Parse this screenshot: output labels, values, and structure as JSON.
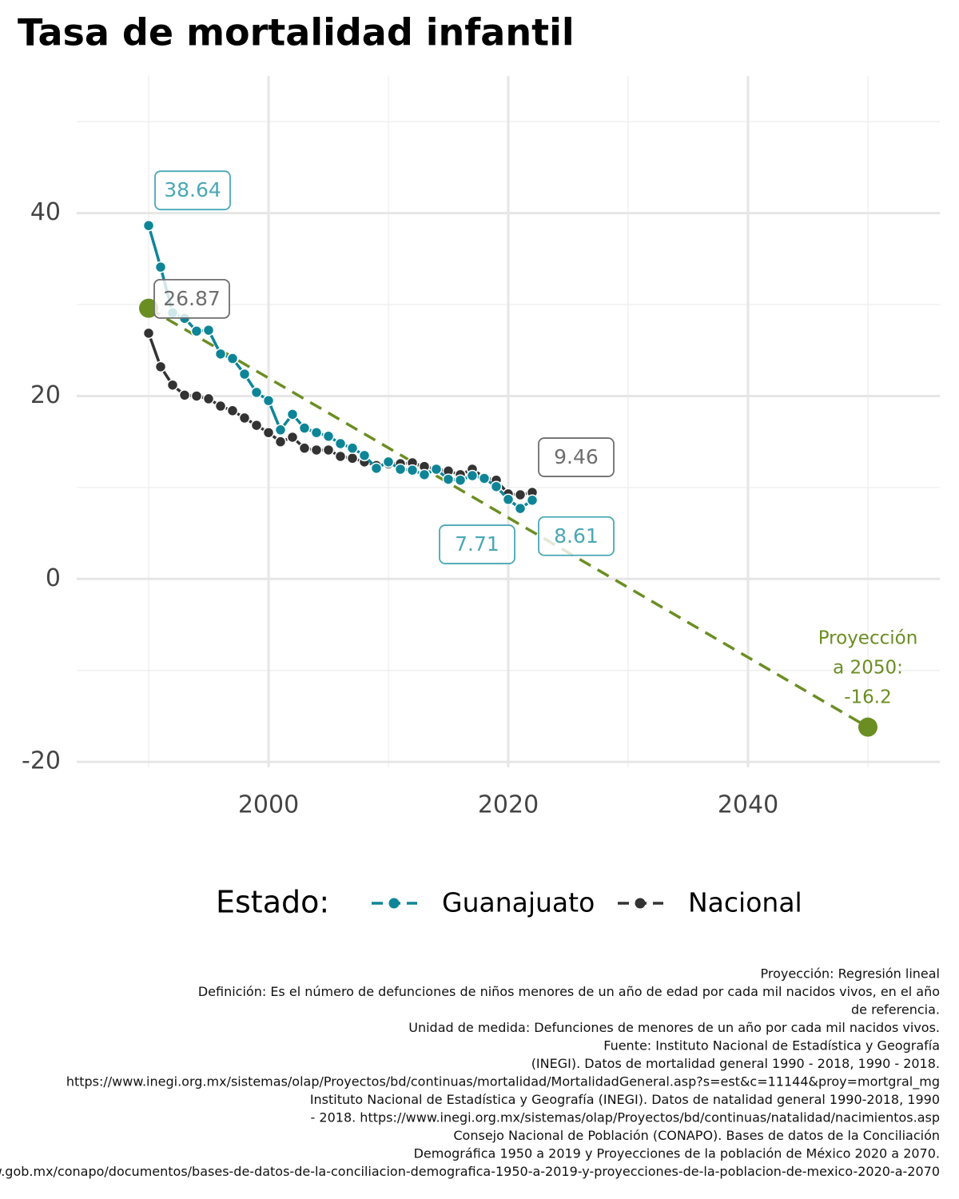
{
  "chart_data": {
    "type": "line",
    "title": "Tasa de mortalidad infantil",
    "x": [
      1990,
      1991,
      1992,
      1993,
      1994,
      1995,
      1996,
      1997,
      1998,
      1999,
      2000,
      2001,
      2002,
      2003,
      2004,
      2005,
      2006,
      2007,
      2008,
      2009,
      2010,
      2011,
      2012,
      2013,
      2014,
      2015,
      2016,
      2017,
      2018,
      2019,
      2020,
      2021,
      2022
    ],
    "series": [
      {
        "name": "Guanajuato",
        "color": "#0e8597",
        "label_color": "#4aa8b5",
        "values": [
          38.64,
          34.1,
          29.1,
          28.5,
          27.1,
          27.2,
          24.6,
          24.1,
          22.4,
          20.4,
          19.5,
          16.3,
          18.0,
          16.5,
          16.0,
          15.6,
          14.8,
          14.3,
          13.5,
          12.1,
          12.8,
          12.0,
          11.9,
          11.4,
          12.0,
          10.9,
          10.8,
          11.3,
          11.0,
          10.1,
          8.7,
          7.71,
          8.61
        ]
      },
      {
        "name": "Nacional",
        "color": "#333333",
        "label_color": "#6e6e6e",
        "values": [
          26.87,
          23.2,
          21.2,
          20.1,
          20.0,
          19.7,
          18.9,
          18.4,
          17.6,
          16.8,
          16.0,
          15.0,
          15.5,
          14.3,
          14.1,
          14.1,
          13.4,
          13.2,
          12.8,
          12.4,
          12.6,
          12.6,
          12.7,
          12.3,
          12.0,
          11.8,
          11.4,
          12.0,
          11.1,
          10.8,
          9.3,
          9.2,
          9.46
        ]
      }
    ],
    "projection": {
      "x": [
        1990,
        2050
      ],
      "values": [
        29.6,
        -16.2
      ],
      "color": "#6b8e23",
      "label_lines": [
        "Proyección",
        "a 2050:"
      ]
    },
    "xlim": [
      1984,
      2056
    ],
    "ylim": [
      -20.6,
      55
    ],
    "xticks": [
      2000,
      2020,
      2040
    ],
    "yticks": [
      -20,
      0,
      20,
      40
    ],
    "minor_xticks": [
      1990,
      2010,
      2030,
      2050
    ],
    "minor_yticks": [
      -10,
      10,
      30,
      50
    ],
    "grid": true,
    "legend_title": "Estado:",
    "legend_position": "bottom",
    "caption": [
      "Proyección: Regresión lineal",
      "Definición: Es el número de defunciones de niños menores de un año de edad por cada mil nacidos vivos, en el año",
      "de referencia.",
      "Unidad de medida: Defunciones de menores de un año por cada mil nacidos vivos.",
      "Fuente: Instituto Nacional de Estadística y Geografía",
      "(INEGI). Datos de mortalidad general 1990 - 2018, 1990 - 2018.",
      "https://www.inegi.org.mx/sistemas/olap/Proyectos/bd/continuas/mortalidad/MortalidadGeneral.asp?s=est&c=11144&proy=mortgral_mg",
      "Instituto Nacional de Estadística y Geografía (INEGI). Datos de natalidad general 1990-2018, 1990",
      "- 2018. https://www.inegi.org.mx/sistemas/olap/Proyectos/bd/continuas/natalidad/nacimientos.asp",
      "Consejo Nacional de Población (CONAPO). Bases de datos de la Conciliación",
      "Demográfica 1950 a 2019 y Proyecciones de la población de México 2020 a 2070.",
      "https://www.gob.mx/conapo/documentos/bases-de-datos-de-la-conciliacion-demografica-1950-a-2019-y-proyecciones-de-la-poblacion-de-mexico-2020-a-2070"
    ]
  }
}
